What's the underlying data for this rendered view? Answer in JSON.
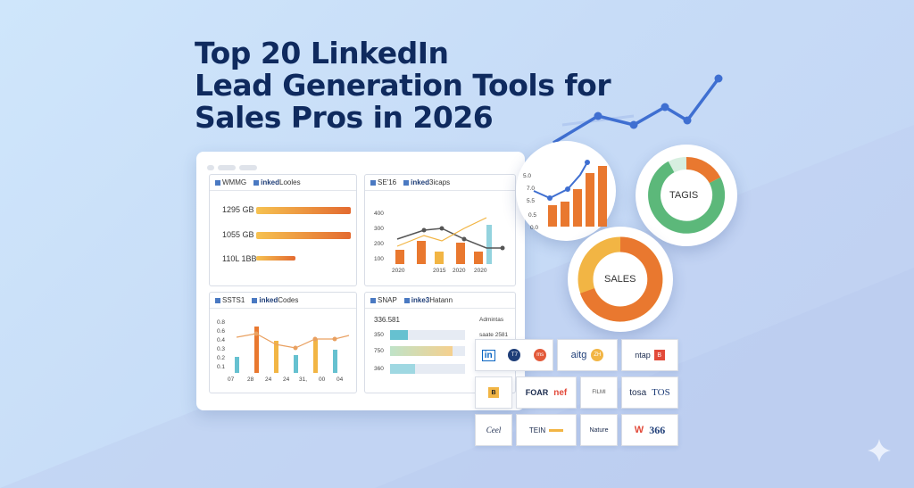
{
  "title": {
    "line1": "Top 20 LinkedIn",
    "line2": "Lead Generation Tools for",
    "line3": "Sales Pros in 2026"
  },
  "colors": {
    "navy": "#0f2a5e",
    "orange": "#e9782f",
    "gold": "#f2b544",
    "teal": "#66c1d0",
    "green": "#5cb87a",
    "line_blue": "#3f6fd1"
  },
  "panels": {
    "p1": {
      "name": "WMMG",
      "brand": "inked",
      "brand_suffix": "Looles",
      "rows": [
        {
          "label": "1295 GB",
          "fill": 0.95
        },
        {
          "label": "1055 GB",
          "fill": 0.95
        },
        {
          "label": "110L 1BB",
          "fill": 0.3
        }
      ]
    },
    "p2": {
      "name": "SE'16",
      "brand": "inked",
      "brand_suffix": "3icaps",
      "y_ticks": [
        "400",
        "300",
        "200",
        "100"
      ],
      "x_ticks": [
        "2020",
        "2015",
        "2020",
        "2020"
      ]
    },
    "p3": {
      "name": "SSTS1",
      "brand": "inked",
      "brand_suffix": "Codes",
      "y_ticks": [
        "0.8",
        "0.6",
        "0.4",
        "0.3",
        "0.2",
        "0.1"
      ],
      "x_ticks": [
        "07",
        "28",
        "24",
        "24",
        "31,",
        "00",
        "04"
      ]
    },
    "p4": {
      "name": "SNAP",
      "brand": "inke3",
      "brand_suffix": "Hatann",
      "top_left": "336.581",
      "top_right": "Admintas",
      "top_right2": "saate 2581",
      "rows": [
        {
          "label": "350"
        },
        {
          "label": "750"
        },
        {
          "label": "360"
        }
      ]
    }
  },
  "bubbles": {
    "donut1_label": "TAGIS",
    "donut2_label": "SALES",
    "chart_ticks": [
      "5.0",
      "7.0",
      "5.5",
      "0.5",
      "0.0"
    ]
  },
  "logos": {
    "row1": [
      "in",
      "T7",
      "ms",
      "aitg",
      "ZH",
      "ntap",
      "B"
    ],
    "row2": [
      "B",
      "FOAR",
      "nef",
      "FILMI",
      "tosa",
      "TOS"
    ],
    "row3": [
      "Ceel",
      "TEIN",
      "Nature",
      "W",
      "366"
    ]
  }
}
